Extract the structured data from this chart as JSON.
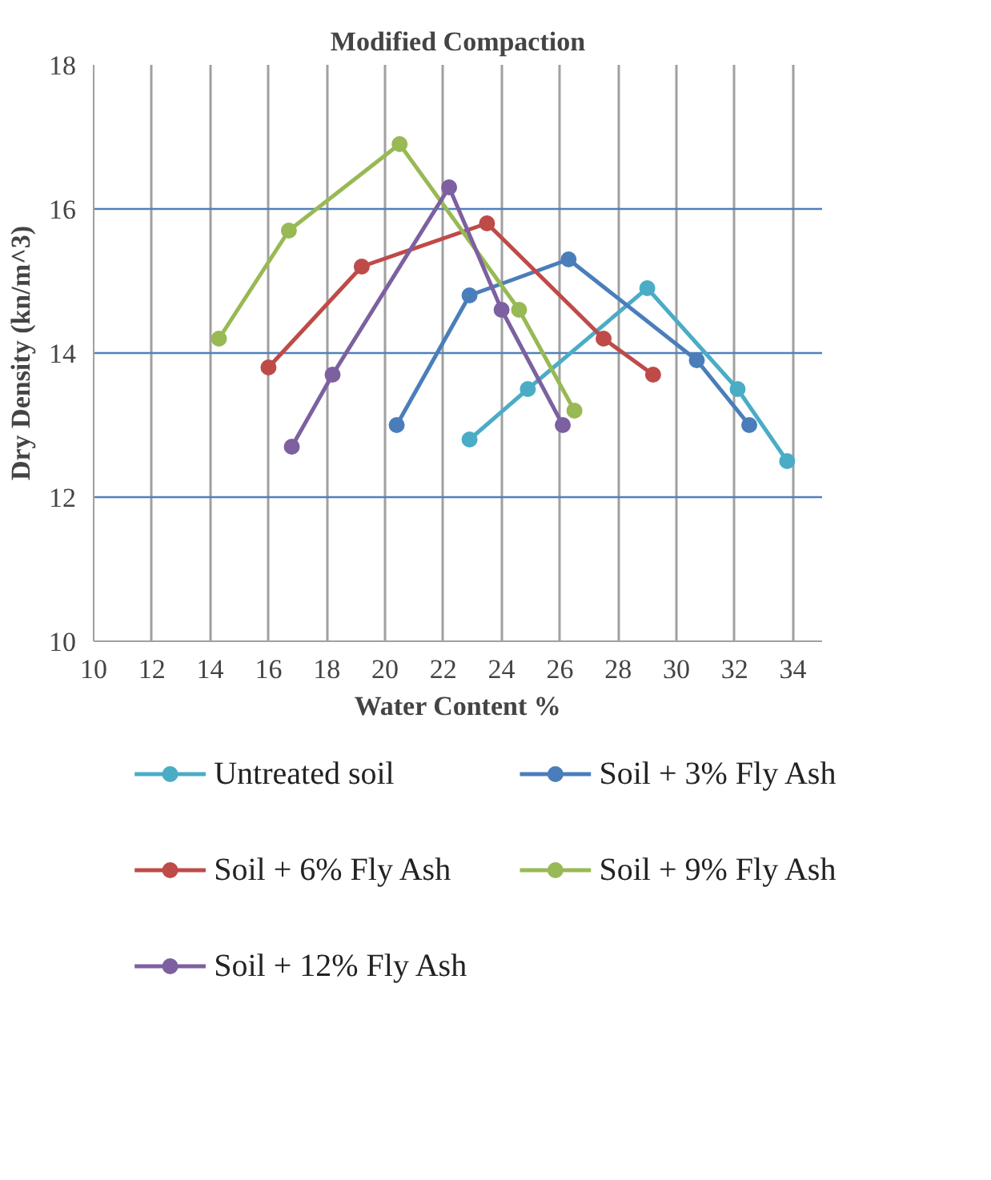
{
  "chart_data": {
    "type": "line",
    "title": "Modified Compaction",
    "xlabel": "Water Content %",
    "ylabel": "Dry Density (kn/m^3)",
    "xlim": [
      10,
      35
    ],
    "xticks": [
      10,
      12,
      14,
      16,
      18,
      20,
      22,
      24,
      26,
      28,
      30,
      32,
      34
    ],
    "ylim": [
      10,
      18
    ],
    "yticks": [
      10,
      12,
      14,
      16,
      18
    ],
    "grid": true,
    "legend": "bottom",
    "marker": "circle",
    "line_style": "solid",
    "series": [
      {
        "name": "Untreated soil",
        "color": "#4bacc6",
        "x": [
          22.9,
          24.9,
          29.0,
          32.1,
          33.8
        ],
        "values": [
          12.8,
          13.5,
          14.9,
          13.5,
          12.5
        ]
      },
      {
        "name": "Soil + 3% Fly Ash",
        "color": "#4a7ebb",
        "x": [
          20.4,
          22.9,
          26.3,
          30.7,
          32.5
        ],
        "values": [
          13.0,
          14.8,
          15.3,
          13.9,
          13.0
        ]
      },
      {
        "name": "Soil + 6% Fly Ash",
        "color": "#be4b48",
        "x": [
          16.0,
          19.2,
          23.5,
          27.5,
          29.2
        ],
        "values": [
          13.8,
          15.2,
          15.8,
          14.2,
          13.7
        ]
      },
      {
        "name": "Soil + 9% Fly Ash",
        "color": "#98b954",
        "x": [
          14.3,
          16.7,
          20.5,
          24.6,
          26.5
        ],
        "values": [
          14.2,
          15.7,
          16.9,
          14.6,
          13.2
        ]
      },
      {
        "name": "Soil + 12% Fly Ash",
        "color": "#7d60a0",
        "x": [
          16.8,
          18.2,
          22.2,
          24.0,
          26.1
        ],
        "values": [
          12.7,
          13.7,
          16.3,
          14.6,
          13.0
        ]
      }
    ]
  }
}
